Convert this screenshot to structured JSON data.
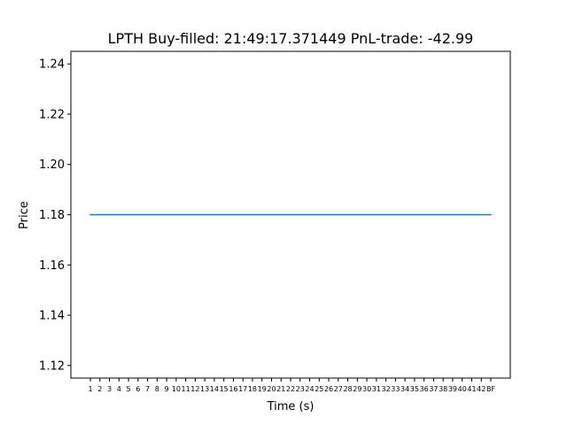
{
  "chart_data": {
    "type": "line",
    "title": "LPTH  Buy-filled:  21:49:17.371449  PnL-trade:  -42.99",
    "xlabel": "Time (s)",
    "ylabel": "Price",
    "ylim": [
      1.115,
      1.245
    ],
    "yticks": [
      "1.12",
      "1.14",
      "1.16",
      "1.18",
      "1.20",
      "1.22",
      "1.24"
    ],
    "categories": [
      "1",
      "2",
      "3",
      "4",
      "5",
      "6",
      "7",
      "8",
      "9",
      "10",
      "11",
      "12",
      "13",
      "14",
      "15",
      "16",
      "17",
      "18",
      "19",
      "20",
      "21",
      "22",
      "23",
      "24",
      "25",
      "26",
      "27",
      "28",
      "29",
      "30",
      "31",
      "32",
      "33",
      "34",
      "35",
      "36",
      "37",
      "38",
      "39",
      "40",
      "41",
      "42",
      "BF"
    ],
    "series": [
      {
        "values": [
          1.18,
          1.18,
          1.18,
          1.18,
          1.18,
          1.18,
          1.18,
          1.18,
          1.18,
          1.18,
          1.18,
          1.18,
          1.18,
          1.18,
          1.18,
          1.18,
          1.18,
          1.18,
          1.18,
          1.18,
          1.18,
          1.18,
          1.18,
          1.18,
          1.18,
          1.18,
          1.18,
          1.18,
          1.18,
          1.18,
          1.18,
          1.18,
          1.18,
          1.18,
          1.18,
          1.18,
          1.18,
          1.18,
          1.18,
          1.18,
          1.18,
          1.18,
          1.18
        ],
        "color": "#1f77b4"
      }
    ],
    "grid": false,
    "legend": "none"
  }
}
